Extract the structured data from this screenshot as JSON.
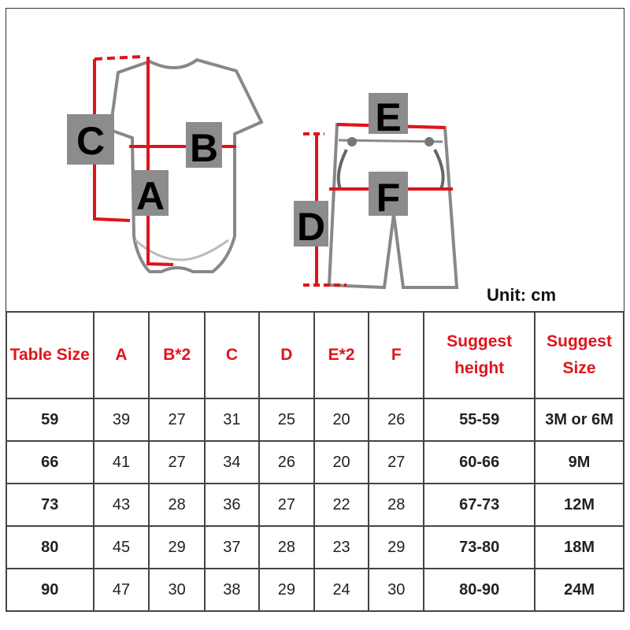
{
  "diagram": {
    "labels": [
      "A",
      "B",
      "C",
      "D",
      "E",
      "F"
    ],
    "unit": "Unit: cm",
    "colors": {
      "dimension_line": "#e0141b",
      "label_box": "#8c8c8c",
      "garment_outline": "#888888"
    }
  },
  "table": {
    "headers": [
      "Table Size",
      "A",
      "B*2",
      "C",
      "D",
      "E*2",
      "F",
      "Suggest height",
      "Suggest Size"
    ],
    "rows": [
      [
        "59",
        "39",
        "27",
        "31",
        "25",
        "20",
        "26",
        "55-59",
        "3M or 6M"
      ],
      [
        "66",
        "41",
        "27",
        "34",
        "26",
        "20",
        "27",
        "60-66",
        "9M"
      ],
      [
        "73",
        "43",
        "28",
        "36",
        "27",
        "22",
        "28",
        "67-73",
        "12M"
      ],
      [
        "80",
        "45",
        "29",
        "37",
        "28",
        "23",
        "29",
        "73-80",
        "18M"
      ],
      [
        "90",
        "47",
        "30",
        "38",
        "29",
        "24",
        "30",
        "80-90",
        "24M"
      ]
    ]
  }
}
